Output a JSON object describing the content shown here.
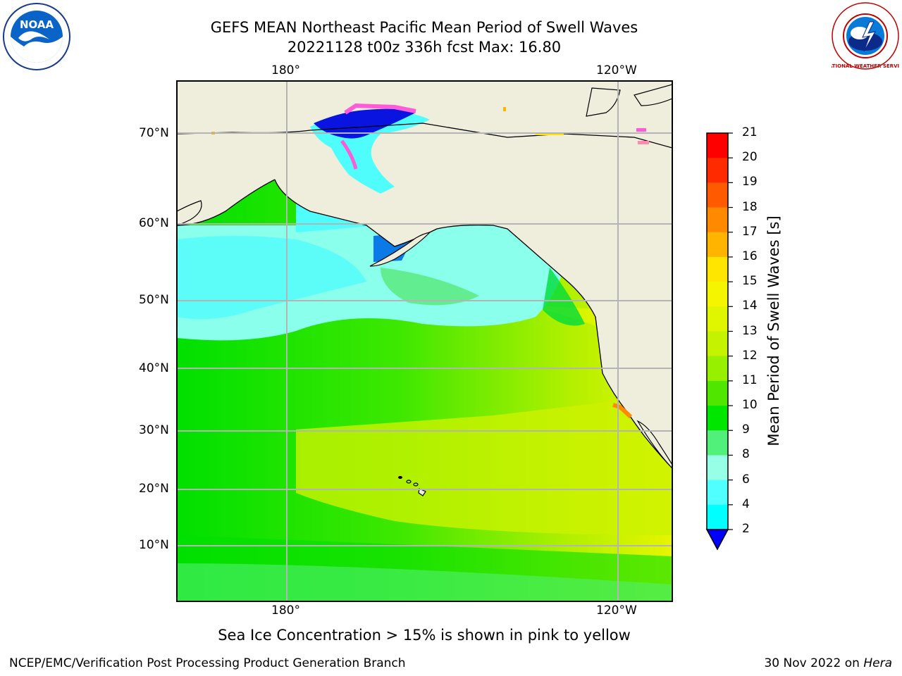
{
  "header": {
    "title_line1": "GEFS MEAN Northeast Pacific Mean Period of Swell Waves",
    "title_line2": "20221128 t00z 336h fcst   Max: 16.80"
  },
  "map": {
    "top_lon_labels": [
      "180°",
      "120°W"
    ],
    "bottom_lon_labels": [
      "180°",
      "120°W"
    ],
    "lat_labels": [
      "70°N",
      "60°N",
      "50°N",
      "40°N",
      "30°N",
      "20°N",
      "10°N"
    ],
    "land_color": "#efeedd",
    "grid_color": "#b4b4b4"
  },
  "colorbar": {
    "label": "Mean Period of Swell Waves [s]",
    "ticks": [
      "21",
      "20",
      "19",
      "18",
      "17",
      "16",
      "15",
      "14",
      "13",
      "12",
      "11",
      "10",
      "9",
      "8",
      "6",
      "4",
      "2"
    ],
    "colors": [
      "#ff0000",
      "#ff2a00",
      "#ff5a00",
      "#ff8a00",
      "#ffb400",
      "#ffe600",
      "#f5f500",
      "#e0f500",
      "#c4f200",
      "#96f000",
      "#50e600",
      "#00e600",
      "#50f07a",
      "#96ffe6",
      "#50ffff",
      "#00ffff",
      "#00dcff",
      "#0064ff"
    ],
    "extend_color": "#0000ff"
  },
  "note": "Sea Ice Concentration > 15% is shown in pink to yellow",
  "footer": {
    "left": "NCEP/EMC/Verification Post Processing Product Generation Branch",
    "date": "30 Nov 2022 on ",
    "machine": "Hera"
  },
  "logos": {
    "noaa_text": "NOAA",
    "nws_text": "NATIONAL WEATHER SERVICE"
  }
}
